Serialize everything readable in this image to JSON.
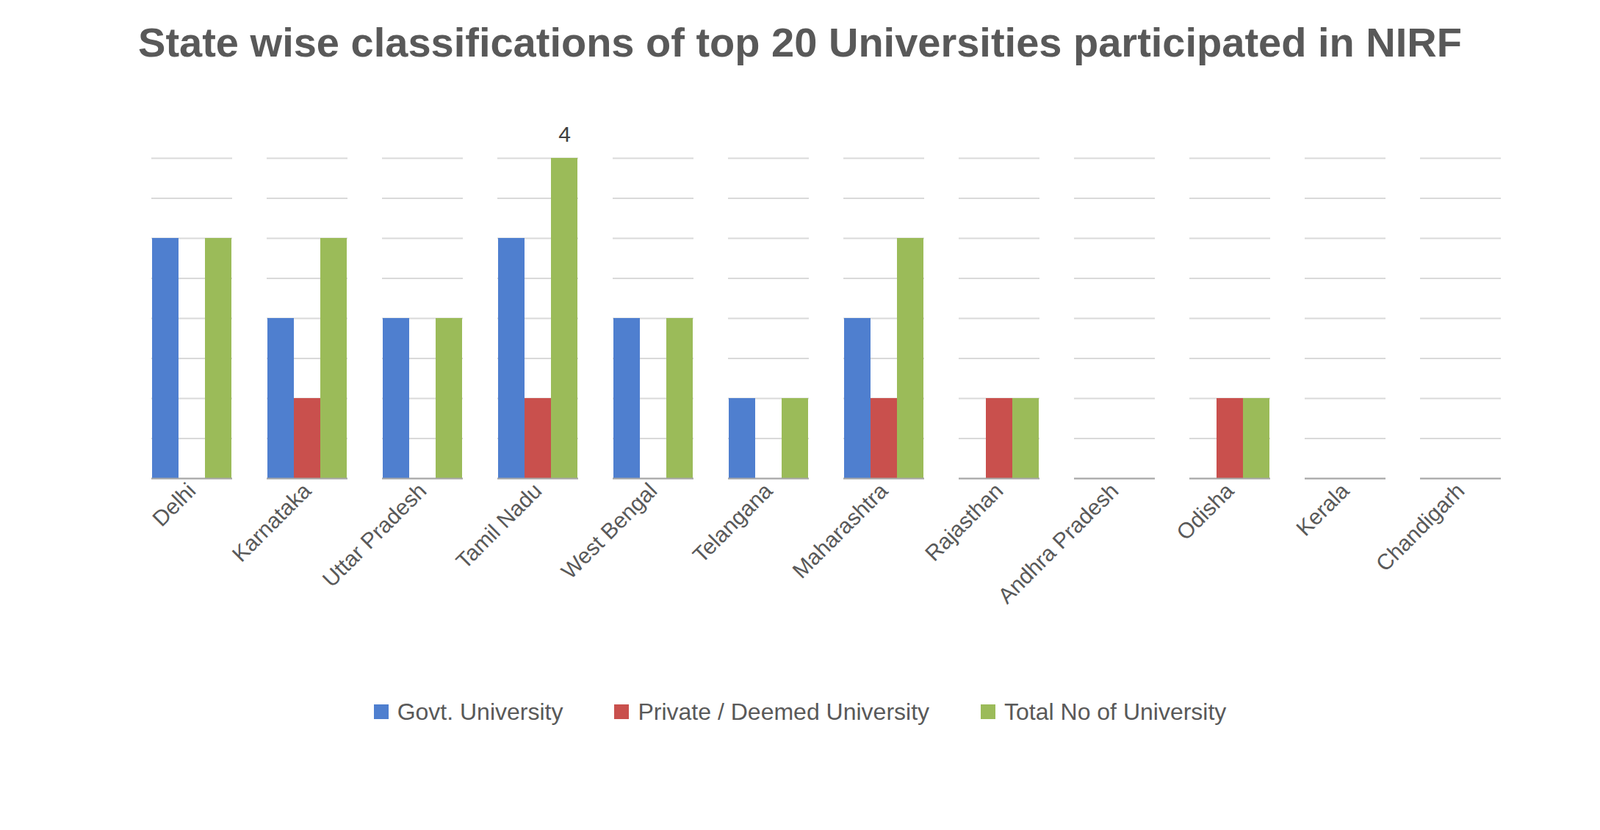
{
  "chart_data": {
    "type": "bar",
    "title": "State wise classifications of top 20 Universities participated in NIRF",
    "categories": [
      "Delhi",
      "Karnataka",
      "Uttar Pradesh",
      "Tamil Nadu",
      "West Bengal",
      "Telangana",
      "Maharashtra",
      "Rajasthan",
      "Andhra Pradesh",
      "Odisha",
      "Kerala",
      "Chandigarh"
    ],
    "series": [
      {
        "name": "Govt. University",
        "color": "#4f7fcf",
        "values": [
          3,
          2,
          2,
          3,
          2,
          1,
          2,
          0,
          0,
          0,
          0,
          0
        ]
      },
      {
        "name": "Private / Deemed University",
        "color": "#c9504d",
        "values": [
          0,
          1,
          0,
          1,
          0,
          0,
          1,
          1,
          0,
          1,
          0,
          0
        ]
      },
      {
        "name": "Total No of University",
        "color": "#9bbb59",
        "values": [
          3,
          3,
          2,
          4,
          2,
          1,
          3,
          1,
          0,
          1,
          0,
          0
        ]
      }
    ],
    "ylim": [
      0,
      4
    ],
    "yticks": [
      0,
      0.5,
      1,
      1.5,
      2,
      2.5,
      3,
      3.5,
      4
    ],
    "grid": true,
    "tick_labels": "x",
    "legend": "bottom",
    "annotations": [
      {
        "category": "Tamil Nadu",
        "series": "Total No of University",
        "value": 4,
        "text": "4"
      }
    ]
  }
}
